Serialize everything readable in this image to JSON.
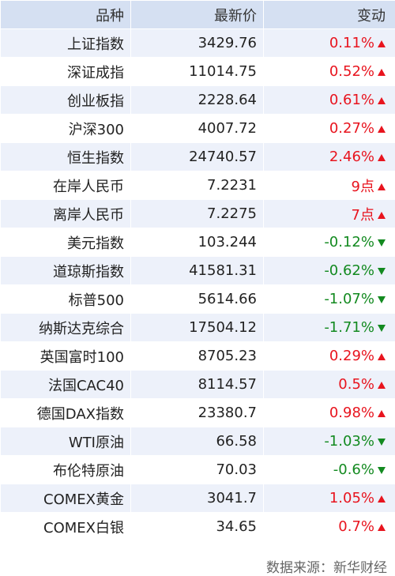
{
  "table": {
    "header": [
      "品种",
      "最新价",
      "变动"
    ],
    "rows": [
      [
        "上证指数",
        "3429.76",
        "0.11%"
      ],
      [
        "深证成指",
        "11014.75",
        "0.52%"
      ],
      [
        "创业板指",
        "2228.64",
        "0.61%"
      ],
      [
        "沪深300",
        "4007.72",
        "0.27%"
      ],
      [
        "恒生指数",
        "24740.57",
        "2.46%"
      ],
      [
        "在岸人民币",
        "7.2231",
        "9点"
      ],
      [
        "离岸人民币",
        "7.2275",
        "7点"
      ],
      [
        "美元指数",
        "103.244",
        "-0.12%"
      ],
      [
        "道琼斯指数",
        "41581.31",
        "-0.62%"
      ],
      [
        "标普500",
        "5614.66",
        "-1.07%"
      ],
      [
        "纳斯达克综合",
        "17504.12",
        "-1.71%"
      ],
      [
        "英国富时100",
        "8705.23",
        "0.29%"
      ],
      [
        "法国CAC40",
        "8114.57",
        "0.5%"
      ],
      [
        "德国DAX指数",
        "23380.7",
        "0.98%"
      ],
      [
        "WTI原油",
        "66.58",
        "-1.03%"
      ],
      [
        "布伦特原油",
        "70.03",
        "-0.6%"
      ],
      [
        "COMEX黄金",
        "3041.7",
        "1.05%"
      ],
      [
        "COMEX白银",
        "34.65",
        "0.7%"
      ]
    ]
  },
  "source": "数据来源：新华财经"
}
